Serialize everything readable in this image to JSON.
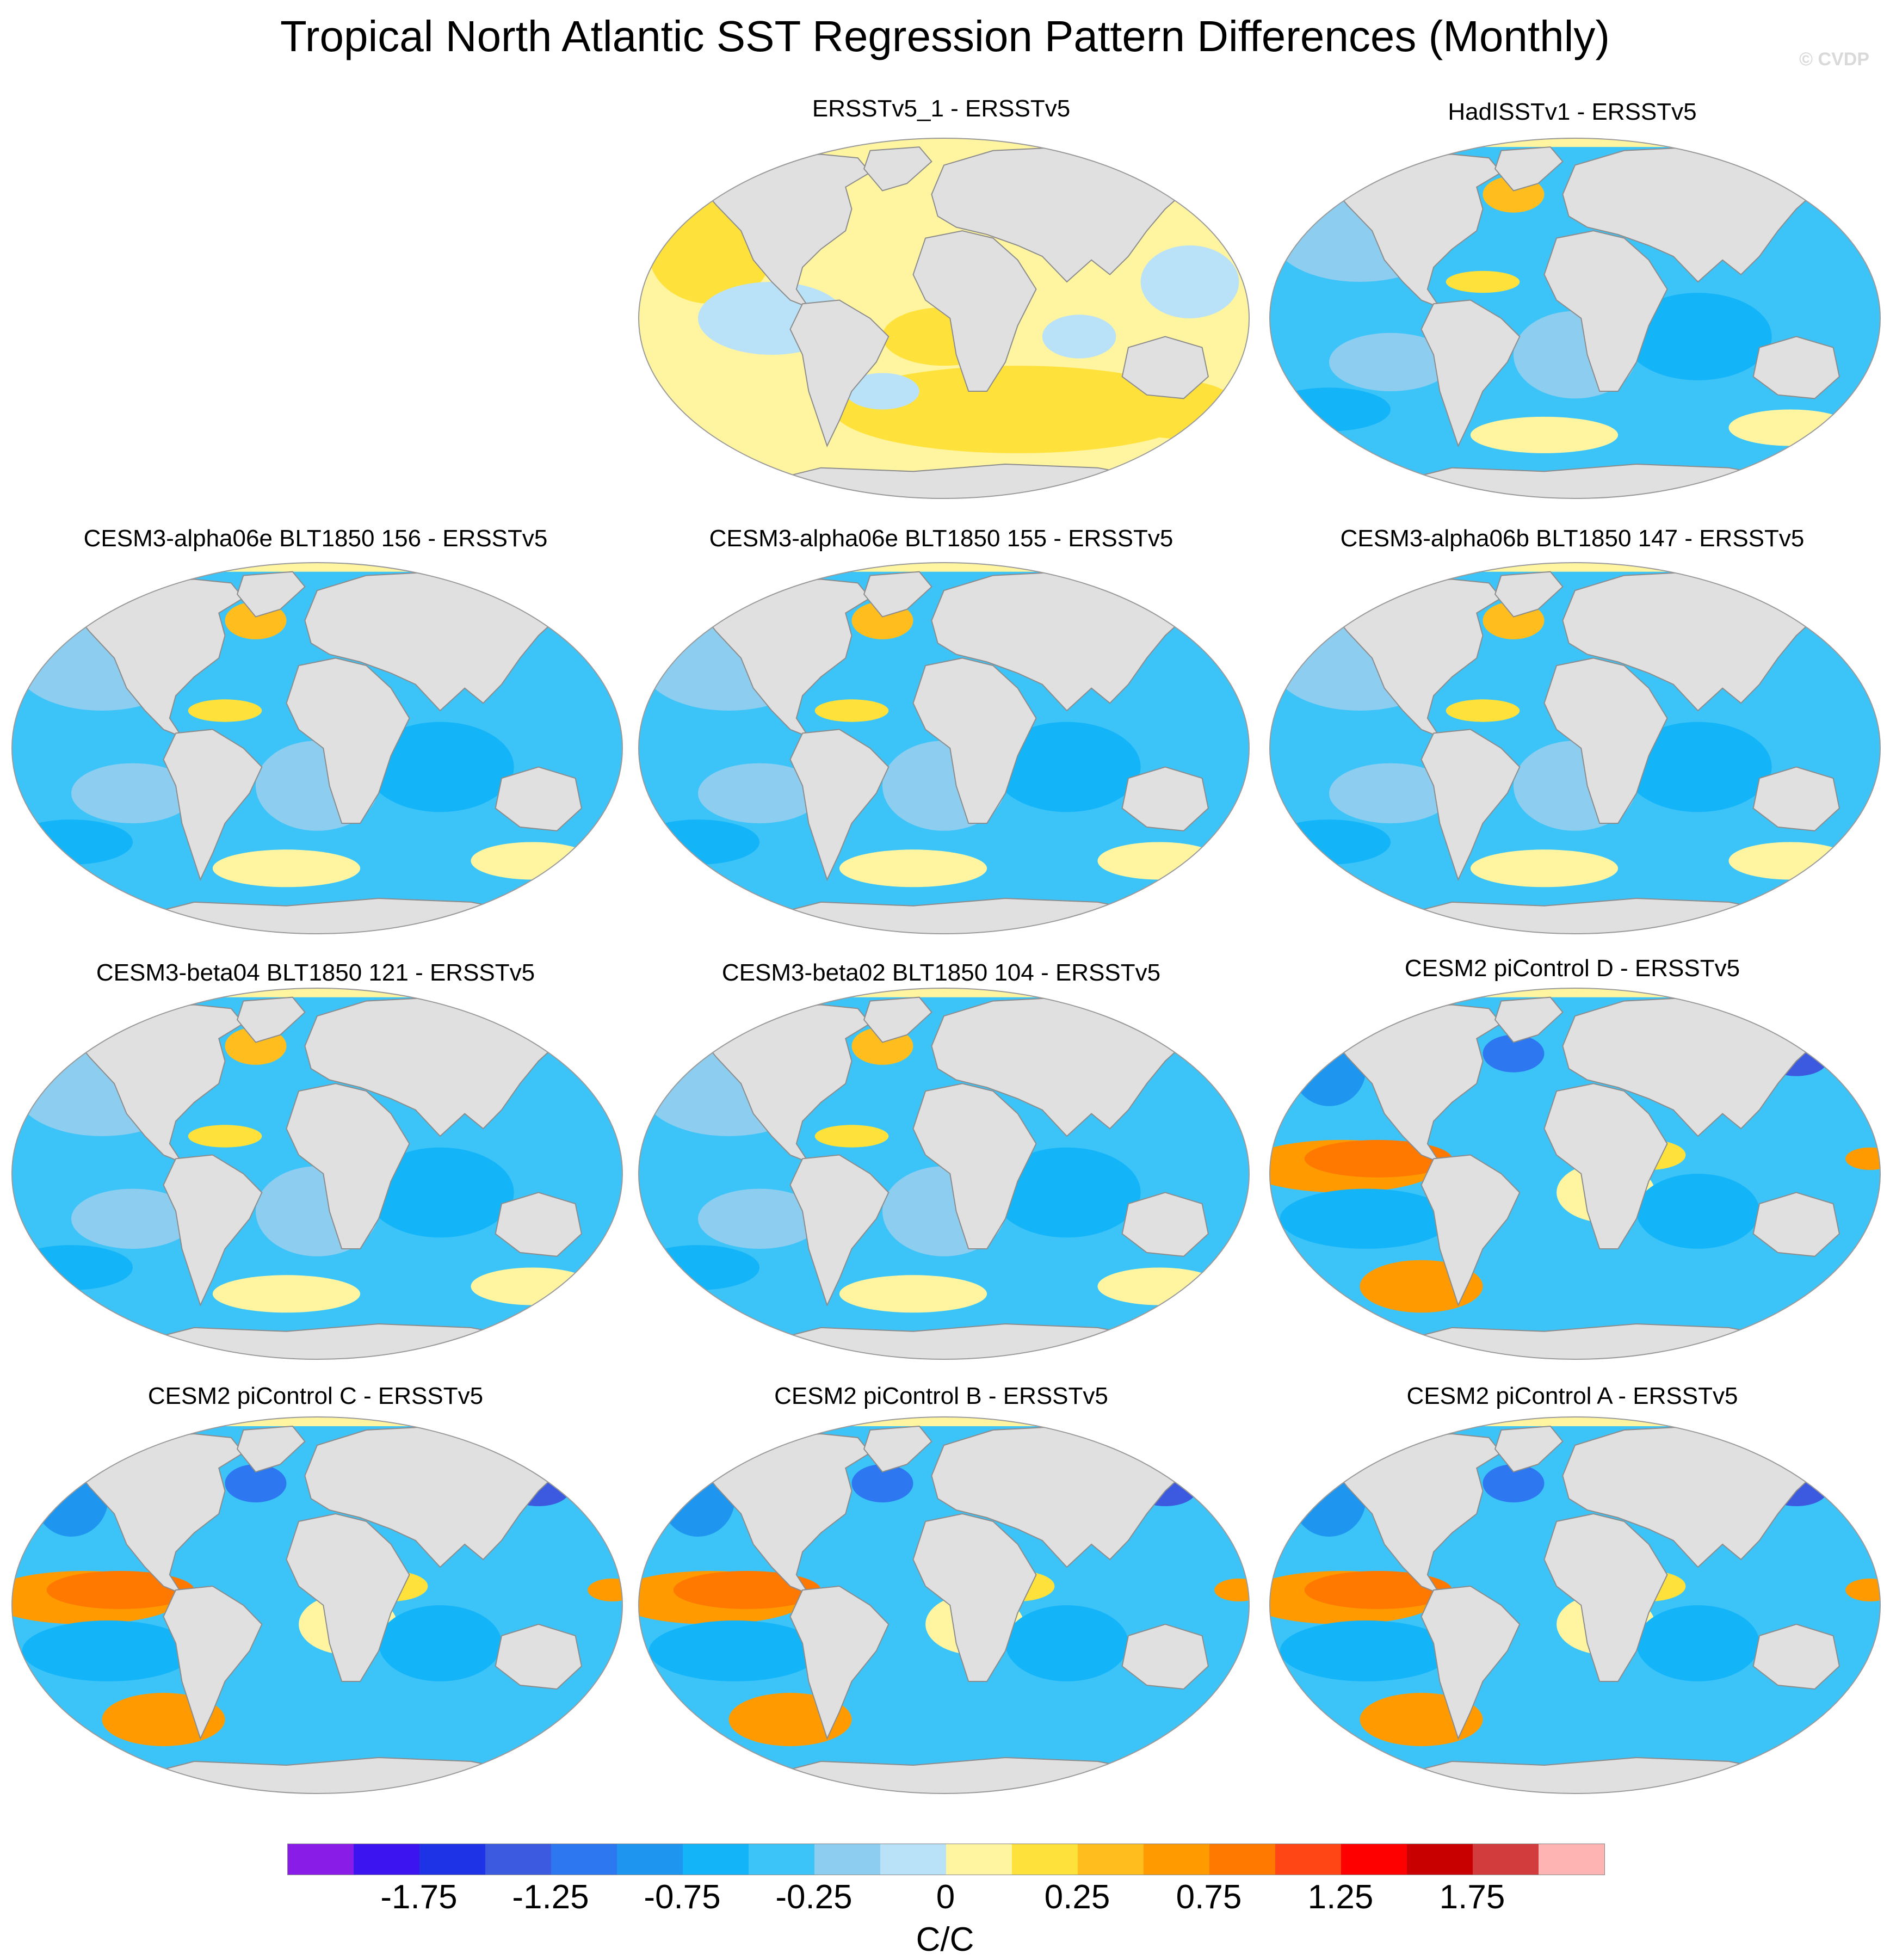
{
  "title": "Tropical North Atlantic SST Regression Pattern Differences (Monthly)",
  "credit": "© CVDP",
  "colors": {
    "land": "#e0e0e0",
    "coast": "#8c8c8c",
    "background": "#ffffff"
  },
  "panels": [
    {
      "label": "ERSSTv5_1 - ERSSTv5",
      "tone": "warm"
    },
    {
      "label": "HadISSTv1 - ERSSTv5",
      "tone": "cool"
    },
    {
      "label": "CESM3-alpha06e BLT1850 156 - ERSSTv5",
      "tone": "cool"
    },
    {
      "label": "CESM3-alpha06e BLT1850 155 - ERSSTv5",
      "tone": "cool"
    },
    {
      "label": "CESM3-alpha06b BLT1850 147 - ERSSTv5",
      "tone": "cool"
    },
    {
      "label": "CESM3-beta04 BLT1850 121 - ERSSTv5",
      "tone": "cool"
    },
    {
      "label": "CESM3-beta02 BLT1850 104 - ERSSTv5",
      "tone": "cool"
    },
    {
      "label": "CESM2 piControl D - ERSSTv5",
      "tone": "enso"
    },
    {
      "label": "CESM2 piControl C - ERSSTv5",
      "tone": "enso"
    },
    {
      "label": "CESM2 piControl B - ERSSTv5",
      "tone": "enso"
    },
    {
      "label": "CESM2 piControl A - ERSSTv5",
      "tone": "enso"
    }
  ],
  "colorbar": {
    "colors": [
      "#8a1ce8",
      "#3c14f0",
      "#1e32e6",
      "#3c5ae0",
      "#2d78f0",
      "#1e96f0",
      "#14b4f8",
      "#3cc3f8",
      "#8ccdf0",
      "#b9e1f8",
      "#fff5a0",
      "#ffe13c",
      "#ffbe1e",
      "#ff9b00",
      "#ff7800",
      "#ff4614",
      "#ff0000",
      "#c80000",
      "#d23c3c",
      "#ffb4b4"
    ],
    "tick_labels": [
      "-1.75",
      "-1.25",
      "-0.75",
      "-0.25",
      "0",
      "0.25",
      "0.75",
      "1.25",
      "1.75"
    ],
    "units": "C/C"
  }
}
